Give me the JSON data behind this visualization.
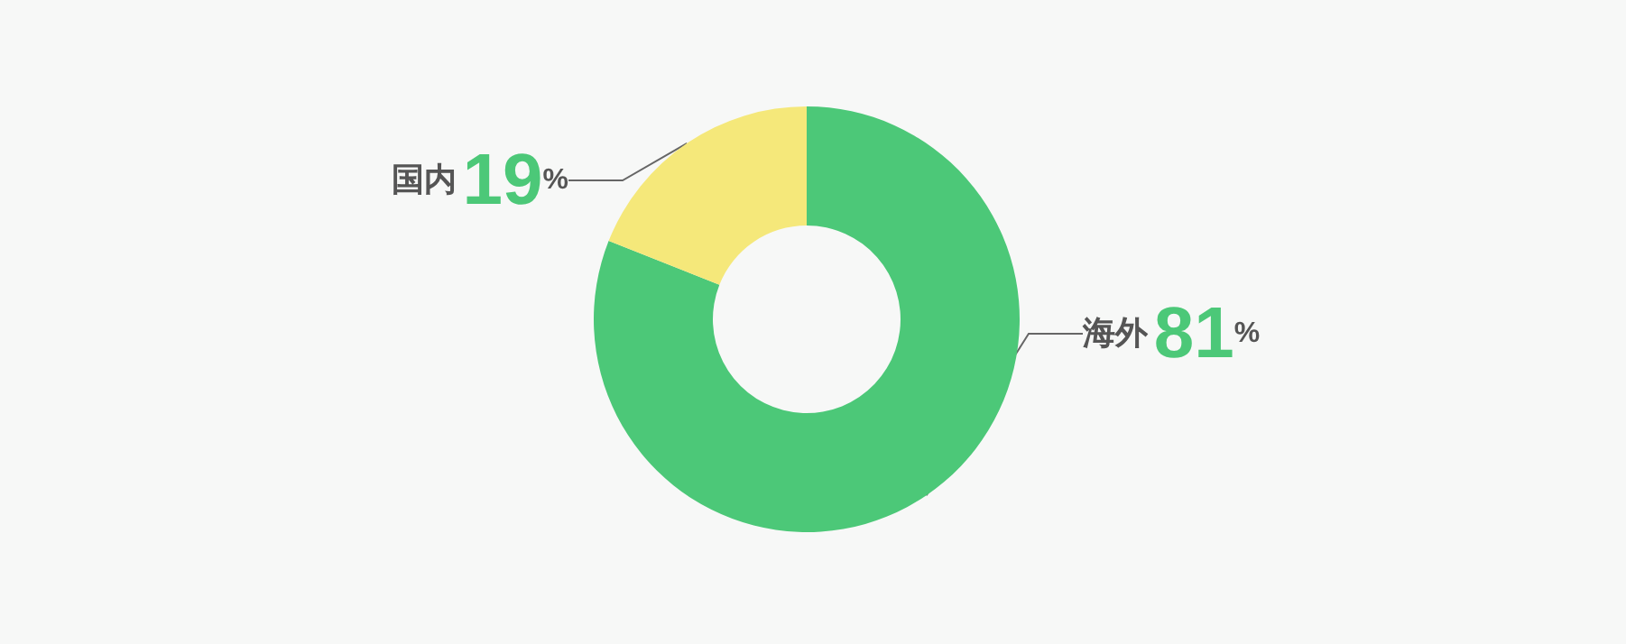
{
  "chart_data": {
    "type": "donut",
    "categories": [
      "海外",
      "国内"
    ],
    "values": [
      81,
      19
    ],
    "colors": [
      "#4cc878",
      "#f5e87a"
    ],
    "value_labels": [
      "81%",
      "19%"
    ],
    "legend": false
  }
}
